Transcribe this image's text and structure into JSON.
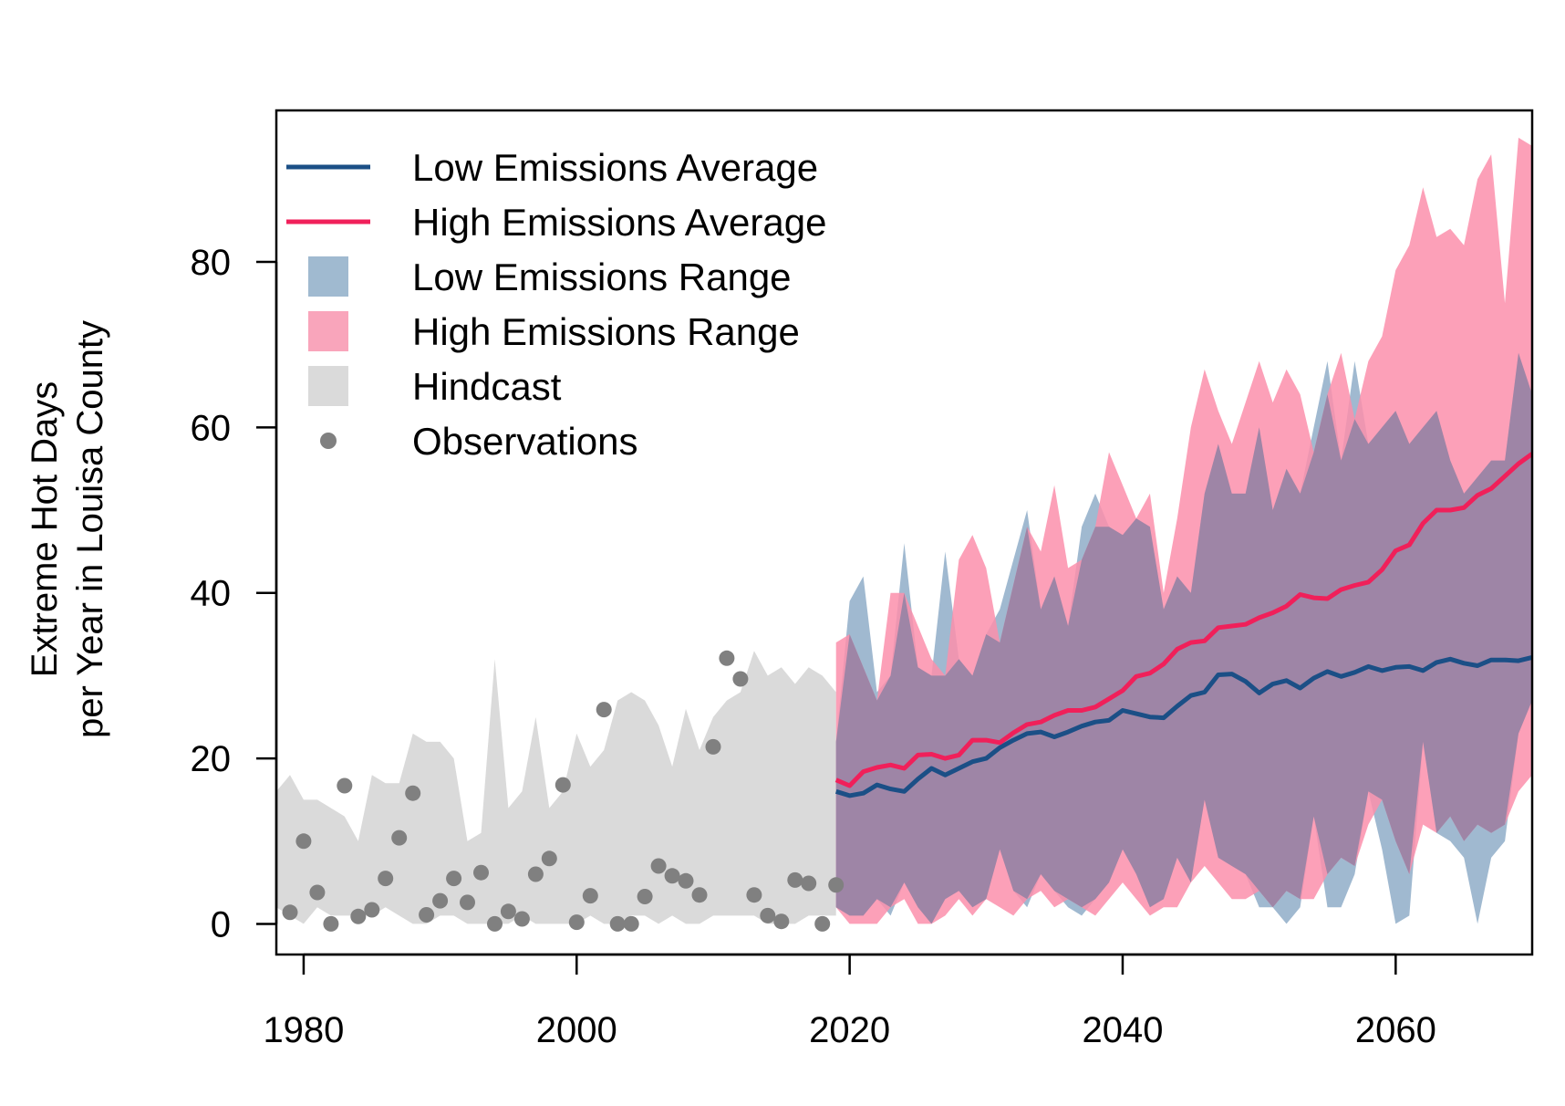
{
  "chart_data": {
    "type": "line",
    "title": "",
    "xlabel": "",
    "ylabel_lines": [
      "Extreme Hot Days",
      "per Year in Louisa County"
    ],
    "xlim": [
      1978,
      2070
    ],
    "ylim": [
      -3.7,
      98.3
    ],
    "xticks": [
      1980,
      2000,
      2020,
      2040,
      2060
    ],
    "yticks": [
      0,
      20,
      40,
      60,
      80
    ],
    "grid": false,
    "legend_position": "top-left",
    "legend": [
      {
        "label": "Low Emissions Average",
        "kind": "line",
        "color": "#1b4f86"
      },
      {
        "label": "High Emissions Average",
        "kind": "line",
        "color": "#f0205a"
      },
      {
        "label": "Low Emissions Range",
        "kind": "box",
        "color": "#a0bad0"
      },
      {
        "label": "High Emissions Range",
        "kind": "box",
        "color": "#f9a5bb"
      },
      {
        "label": "Hindcast",
        "kind": "box",
        "color": "#dadada"
      },
      {
        "label": "Observations",
        "kind": "point",
        "color": "#808080"
      }
    ],
    "colors": {
      "low_avg": "#1b4f86",
      "high_avg": "#f0205a",
      "low_range": "#8fadc8",
      "high_range": "#fb8fab",
      "hindcast": "#dadada",
      "observations": "#808080"
    },
    "hindcast": {
      "x": [
        1978,
        1979,
        1980,
        1981,
        1982,
        1983,
        1984,
        1985,
        1986,
        1987,
        1988,
        1989,
        1990,
        1991,
        1992,
        1993,
        1994,
        1995,
        1996,
        1997,
        1998,
        1999,
        2000,
        2001,
        2002,
        2003,
        2004,
        2005,
        2006,
        2007,
        2008,
        2009,
        2010,
        2011,
        2012,
        2013,
        2014,
        2015,
        2016,
        2017,
        2018,
        2019
      ],
      "upper": [
        16,
        18,
        15,
        15,
        14,
        13,
        10,
        18,
        17,
        17,
        23,
        22,
        22,
        20,
        10,
        11,
        32,
        14,
        16,
        25,
        14,
        16,
        23,
        19,
        21,
        27,
        28,
        27,
        24,
        19,
        26,
        21,
        25,
        27,
        28,
        33,
        30,
        31,
        29,
        31,
        30,
        28
      ],
      "lower": [
        2,
        1,
        0,
        2,
        1,
        1,
        1,
        1,
        2,
        1,
        0,
        0,
        1,
        1,
        0,
        0,
        0,
        0,
        1,
        0,
        0,
        0,
        0,
        1,
        0,
        0,
        1,
        1,
        0,
        1,
        0,
        0,
        1,
        1,
        1,
        1,
        0,
        0,
        0,
        1,
        1,
        1
      ]
    },
    "low_range": {
      "x": [
        2019,
        2020,
        2021,
        2022,
        2023,
        2024,
        2025,
        2026,
        2027,
        2028,
        2029,
        2030,
        2031,
        2032,
        2033,
        2034,
        2035,
        2036,
        2037,
        2038,
        2039,
        2040,
        2041,
        2042,
        2043,
        2044,
        2045,
        2046,
        2047,
        2048,
        2049,
        2050,
        2051,
        2052,
        2053,
        2054,
        2055,
        2056,
        2057,
        2058,
        2059,
        2060,
        2061,
        2062,
        2063,
        2064,
        2065,
        2066,
        2067,
        2068,
        2069,
        2070
      ],
      "upper": [
        22,
        39,
        42,
        28,
        30,
        46,
        31,
        30,
        45,
        32,
        30,
        35,
        38,
        44,
        50,
        38,
        42,
        36,
        48,
        52,
        48,
        47,
        49,
        48,
        38,
        42,
        40,
        52,
        58,
        52,
        52,
        60,
        50,
        55,
        52,
        60,
        68,
        56,
        68,
        58,
        60,
        62,
        58,
        60,
        62,
        56,
        52,
        54,
        56,
        56,
        69,
        64
      ],
      "lower": [
        2,
        1,
        1,
        3,
        1,
        5,
        2,
        0,
        3,
        4,
        2,
        3,
        9,
        4,
        2,
        6,
        4,
        2,
        1,
        3,
        5,
        9,
        6,
        2,
        3,
        8,
        5,
        15,
        8,
        7,
        6,
        2,
        2,
        0,
        2,
        13,
        2,
        2,
        6,
        16,
        9,
        0,
        1,
        22,
        11,
        10,
        8,
        0,
        8,
        10,
        23,
        27
      ]
    },
    "high_range": {
      "x": [
        2019,
        2020,
        2021,
        2022,
        2023,
        2024,
        2025,
        2026,
        2027,
        2028,
        2029,
        2030,
        2031,
        2032,
        2033,
        2034,
        2035,
        2036,
        2037,
        2038,
        2039,
        2040,
        2041,
        2042,
        2043,
        2044,
        2045,
        2046,
        2047,
        2048,
        2049,
        2050,
        2051,
        2052,
        2053,
        2054,
        2055,
        2056,
        2057,
        2058,
        2059,
        2060,
        2061,
        2062,
        2063,
        2064,
        2065,
        2066,
        2067,
        2068,
        2069,
        2070
      ],
      "upper": [
        34,
        35,
        31,
        27,
        40,
        40,
        36,
        32,
        30,
        44,
        47,
        43,
        34,
        41,
        48,
        45,
        53,
        43,
        44,
        48,
        57,
        53,
        49,
        52,
        40,
        49,
        60,
        67,
        62,
        58,
        63,
        68,
        63,
        67,
        64,
        57,
        64,
        69,
        61,
        68,
        71,
        79,
        82,
        89,
        83,
        84,
        82,
        90,
        93,
        75,
        95,
        94
      ],
      "lower": [
        2,
        0,
        0,
        0,
        2,
        3,
        0,
        0,
        1,
        3,
        1,
        3,
        2,
        1,
        3,
        4,
        2,
        3,
        2,
        1,
        3,
        5,
        3,
        1,
        2,
        2,
        5,
        7,
        5,
        3,
        3,
        4,
        2,
        4,
        3,
        3,
        6,
        8,
        7,
        12,
        15,
        10,
        6,
        12,
        11,
        13,
        10,
        12,
        11,
        12,
        16,
        18
      ]
    },
    "series": [
      {
        "name": "Low Emissions Average",
        "x": [
          2019,
          2020,
          2021,
          2022,
          2023,
          2024,
          2025,
          2026,
          2027,
          2028,
          2029,
          2030,
          2031,
          2032,
          2033,
          2034,
          2035,
          2036,
          2037,
          2038,
          2039,
          2040,
          2041,
          2042,
          2043,
          2044,
          2045,
          2046,
          2047,
          2048,
          2049,
          2050,
          2051,
          2052,
          2053,
          2054,
          2055,
          2056,
          2057,
          2058,
          2059,
          2060,
          2061,
          2062,
          2063,
          2064,
          2065,
          2066,
          2067,
          2068,
          2069,
          2070
        ],
        "y": [
          16.0,
          15.5,
          15.8,
          16.8,
          16.3,
          16.0,
          17.5,
          18.8,
          18.0,
          18.8,
          19.6,
          20.0,
          21.3,
          22.2,
          23.0,
          23.2,
          22.6,
          23.2,
          23.9,
          24.4,
          24.6,
          25.8,
          25.4,
          25.0,
          24.9,
          26.3,
          27.6,
          28.0,
          30.1,
          30.2,
          29.3,
          27.9,
          29.0,
          29.4,
          28.5,
          29.7,
          30.5,
          29.9,
          30.4,
          31.1,
          30.6,
          31.0,
          31.1,
          30.6,
          31.6,
          32.0,
          31.5,
          31.2,
          31.9,
          31.9,
          31.8,
          32.2
        ]
      },
      {
        "name": "High Emissions Average",
        "x": [
          2019,
          2020,
          2021,
          2022,
          2023,
          2024,
          2025,
          2026,
          2027,
          2028,
          2029,
          2030,
          2031,
          2032,
          2033,
          2034,
          2035,
          2036,
          2037,
          2038,
          2039,
          2040,
          2041,
          2042,
          2043,
          2044,
          2045,
          2046,
          2047,
          2048,
          2049,
          2050,
          2051,
          2052,
          2053,
          2054,
          2055,
          2056,
          2057,
          2058,
          2059,
          2060,
          2061,
          2062,
          2063,
          2064,
          2065,
          2066,
          2067,
          2068,
          2069,
          2070
        ],
        "y": [
          17.4,
          16.7,
          18.4,
          18.9,
          19.2,
          18.8,
          20.4,
          20.5,
          20.0,
          20.4,
          22.2,
          22.2,
          21.9,
          23.1,
          24.1,
          24.4,
          25.2,
          25.8,
          25.8,
          26.2,
          27.2,
          28.2,
          29.9,
          30.3,
          31.4,
          33.2,
          34.0,
          34.2,
          35.8,
          36.0,
          36.2,
          37.0,
          37.6,
          38.4,
          39.8,
          39.4,
          39.3,
          40.4,
          40.9,
          41.3,
          42.8,
          45.1,
          45.8,
          48.4,
          50.0,
          50.0,
          50.3,
          51.8,
          52.6,
          54.1,
          55.6,
          56.8
        ]
      }
    ],
    "observations": {
      "x": [
        1979,
        1980,
        1981,
        1982,
        1983,
        1984,
        1985,
        1986,
        1987,
        1988,
        1989,
        1990,
        1991,
        1992,
        1993,
        1994,
        1995,
        1996,
        1997,
        1998,
        1999,
        2000,
        2001,
        2002,
        2003,
        2004,
        2005,
        2006,
        2007,
        2008,
        2009,
        2010,
        2011,
        2012,
        2013,
        2014,
        2015,
        2016,
        2017,
        2018,
        2019
      ],
      "y": [
        1.4,
        10.0,
        3.8,
        0.0,
        16.7,
        0.9,
        1.7,
        5.5,
        10.4,
        15.8,
        1.1,
        2.8,
        5.5,
        2.6,
        6.2,
        0.0,
        1.5,
        0.6,
        6.0,
        7.9,
        16.8,
        0.2,
        3.4,
        25.9,
        0.0,
        0.0,
        3.3,
        7.0,
        5.8,
        5.2,
        3.5,
        21.4,
        32.1,
        29.6,
        3.5,
        1.0,
        0.3,
        5.3,
        4.9,
        0.0,
        4.7
      ]
    }
  }
}
